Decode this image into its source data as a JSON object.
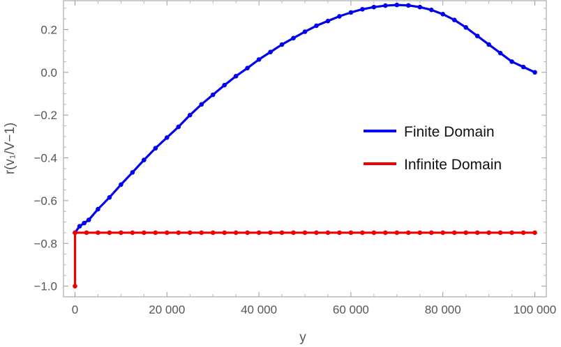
{
  "chart_data": {
    "type": "line",
    "xlabel": "y",
    "ylabel": "r(v₁/V−1)",
    "xlim": [
      -2500,
      102500
    ],
    "ylim": [
      -1.05,
      0.335
    ],
    "x_ticks": [
      0,
      20000,
      40000,
      60000,
      80000,
      100000
    ],
    "x_tick_labels": [
      "0",
      "20 000",
      "40 000",
      "60 000",
      "80 000",
      "100 000"
    ],
    "y_ticks": [
      0.2,
      0.0,
      -0.2,
      -0.4,
      -0.6,
      -0.8,
      -1.0
    ],
    "y_tick_labels": [
      "0.2",
      "0.0",
      "−0.2",
      "−0.4",
      "−0.6",
      "−0.8",
      "−1.0"
    ],
    "legend_position": "right",
    "series": [
      {
        "name": "Finite Domain",
        "color": "#0000ee",
        "x": [
          0,
          1000,
          2000,
          3000,
          5000,
          7500,
          10000,
          12500,
          15000,
          17500,
          20000,
          22500,
          25000,
          27500,
          30000,
          32500,
          35000,
          37500,
          40000,
          42500,
          45000,
          47500,
          50000,
          52500,
          55000,
          57500,
          60000,
          62500,
          65000,
          67500,
          70000,
          72500,
          75000,
          77500,
          80000,
          82500,
          85000,
          87500,
          90000,
          92500,
          95000,
          97500,
          100000
        ],
        "y": [
          -0.75,
          -0.72,
          -0.705,
          -0.69,
          -0.64,
          -0.585,
          -0.525,
          -0.468,
          -0.41,
          -0.355,
          -0.305,
          -0.255,
          -0.2,
          -0.15,
          -0.105,
          -0.06,
          -0.018,
          0.02,
          0.06,
          0.095,
          0.13,
          0.16,
          0.19,
          0.218,
          0.24,
          0.262,
          0.28,
          0.295,
          0.305,
          0.312,
          0.315,
          0.313,
          0.305,
          0.292,
          0.272,
          0.245,
          0.21,
          0.17,
          0.13,
          0.09,
          0.05,
          0.025,
          0.0
        ]
      },
      {
        "name": "Infinite Domain",
        "color": "#ee0000",
        "x": [
          0,
          0,
          2500,
          5000,
          7500,
          10000,
          12500,
          15000,
          17500,
          20000,
          22500,
          25000,
          27500,
          30000,
          32500,
          35000,
          37500,
          40000,
          42500,
          45000,
          47500,
          50000,
          52500,
          55000,
          57500,
          60000,
          62500,
          65000,
          67500,
          70000,
          72500,
          75000,
          77500,
          80000,
          82500,
          85000,
          87500,
          90000,
          92500,
          95000,
          97500,
          100000
        ],
        "y": [
          -1.0,
          -0.75,
          -0.75,
          -0.75,
          -0.75,
          -0.75,
          -0.75,
          -0.75,
          -0.75,
          -0.75,
          -0.75,
          -0.75,
          -0.75,
          -0.75,
          -0.75,
          -0.75,
          -0.75,
          -0.75,
          -0.75,
          -0.75,
          -0.75,
          -0.75,
          -0.75,
          -0.75,
          -0.75,
          -0.75,
          -0.75,
          -0.75,
          -0.75,
          -0.75,
          -0.75,
          -0.75,
          -0.75,
          -0.75,
          -0.75,
          -0.75,
          -0.75,
          -0.75,
          -0.75,
          -0.75,
          -0.75,
          -0.75
        ]
      }
    ]
  }
}
